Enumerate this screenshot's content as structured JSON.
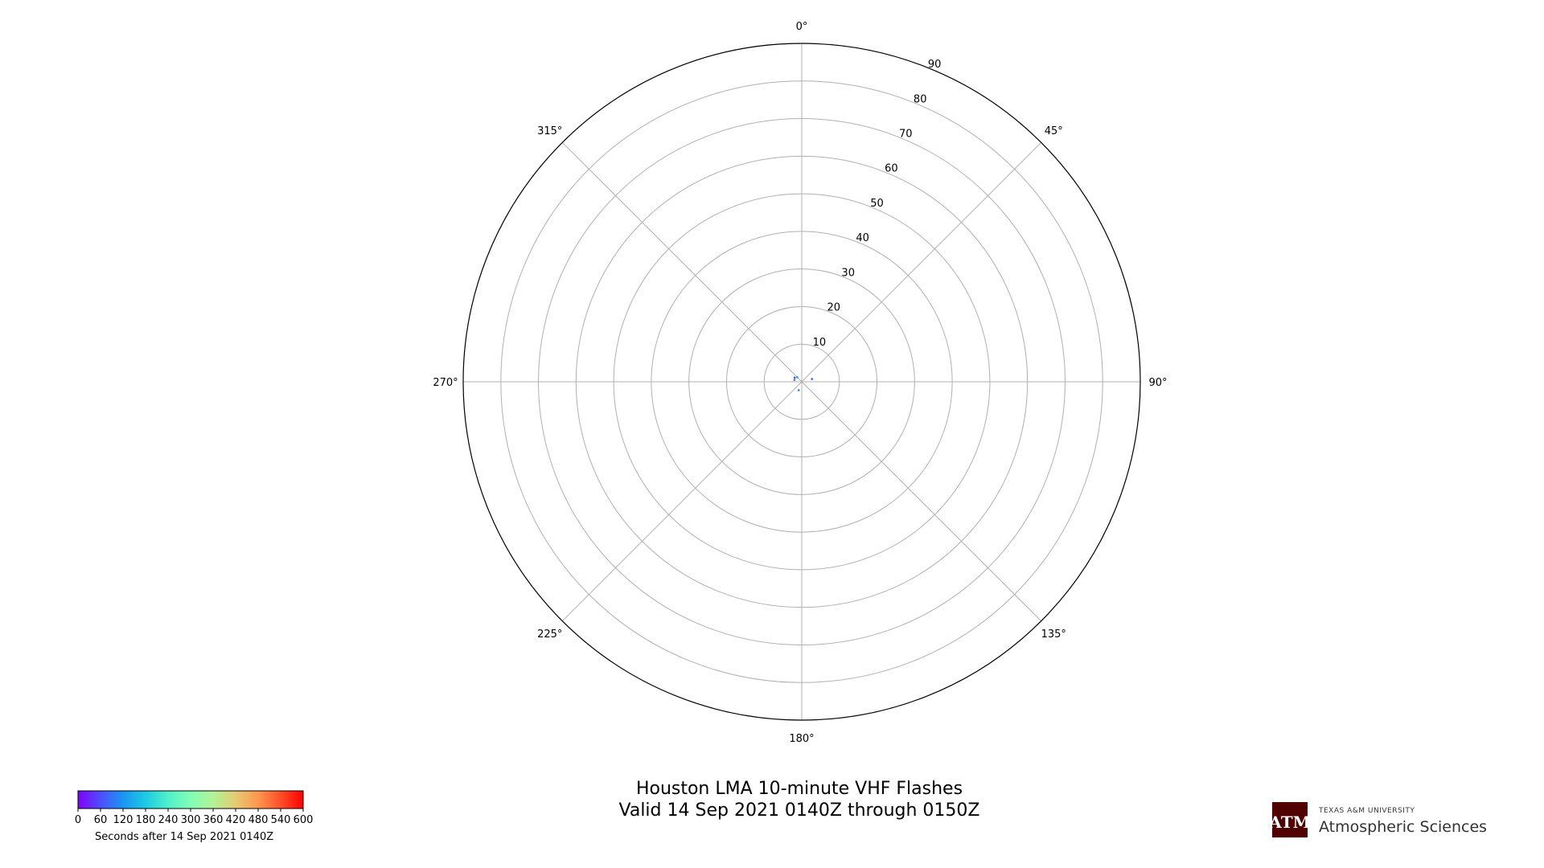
{
  "chart_data": {
    "type": "scatter",
    "projection": "polar",
    "title": "Houston LMA 10-minute VHF Flashes",
    "subtitle": "Valid 14 Sep 2021 0140Z through 0150Z",
    "theta_tick_labels": [
      "0°",
      "45°",
      "90°",
      "135°",
      "180°",
      "225°",
      "270°",
      "315°"
    ],
    "theta_zero_location": "top",
    "theta_direction": "clockwise",
    "r_tick_labels": [
      "10",
      "20",
      "30",
      "40",
      "50",
      "60",
      "70",
      "80",
      "90"
    ],
    "r_ticks": [
      10,
      20,
      30,
      40,
      50,
      60,
      70,
      80,
      90
    ],
    "rlim": [
      0,
      90
    ],
    "grid": true,
    "series": [
      {
        "points": [
          {
            "theta": 300,
            "r": 2.2,
            "c": 60
          },
          {
            "theta": 285,
            "r": 2.0,
            "c": 90
          },
          {
            "theta": 315,
            "r": 1.7,
            "c": 120
          },
          {
            "theta": 75,
            "r": 2.8,
            "c": 60
          },
          {
            "theta": 200,
            "r": 2.4,
            "c": 90
          }
        ]
      }
    ],
    "colorbar": {
      "colormap": "rainbow",
      "range": [
        0,
        600
      ],
      "tick_labels": [
        "0",
        "60",
        "120",
        "180",
        "240",
        "300",
        "360",
        "420",
        "480",
        "540",
        "600"
      ],
      "ticks": [
        0,
        60,
        120,
        180,
        240,
        300,
        360,
        420,
        480,
        540,
        600
      ],
      "label": "Seconds after 14 Sep 2021 0140Z",
      "placement": "bottom-left"
    }
  },
  "logo": {
    "university": "TEXAS A&M UNIVERSITY",
    "department": "Atmospheric Sciences",
    "monogram": "ATM",
    "color": "#500000"
  },
  "colors": {
    "grid": "#b0b0b0",
    "spine": "#000000"
  }
}
